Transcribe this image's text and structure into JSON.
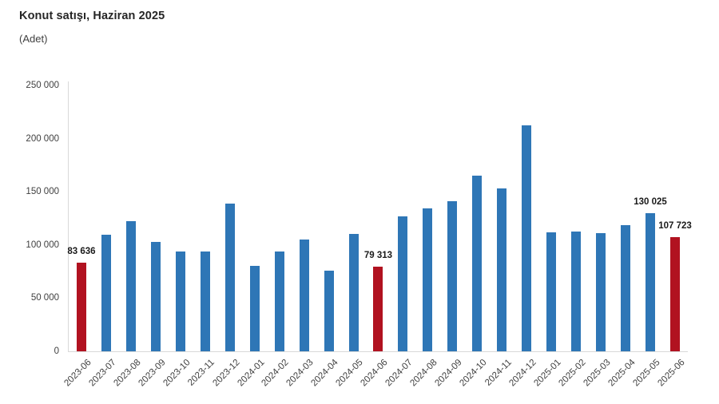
{
  "header": {
    "title": "Konut satışı, Haziran 2025",
    "subtitle": "(Adet)"
  },
  "chart_data": {
    "type": "bar",
    "title": "Konut satışı, Haziran 2025",
    "unit_label": "(Adet)",
    "categories": [
      "2023-06",
      "2023-07",
      "2023-08",
      "2023-09",
      "2023-10",
      "2023-11",
      "2023-12",
      "2024-01",
      "2024-02",
      "2024-03",
      "2024-04",
      "2024-05",
      "2024-06",
      "2024-07",
      "2024-08",
      "2024-09",
      "2024-10",
      "2024-11",
      "2024-12",
      "2025-01",
      "2025-02",
      "2025-03",
      "2025-04",
      "2025-05",
      "2025-06"
    ],
    "values": [
      83636,
      109548,
      122091,
      102656,
      93761,
      93514,
      138577,
      80308,
      93902,
      105394,
      75569,
      110588,
      79313,
      127088,
      134155,
      140919,
      165138,
      153014,
      212637,
      112173,
      112818,
      110795,
      118359,
      130025,
      107723
    ],
    "highlighted_categories": [
      "2023-06",
      "2024-06",
      "2025-06"
    ],
    "data_labels": [
      {
        "category": "2023-06",
        "text": "83 636"
      },
      {
        "category": "2024-06",
        "text": "79 313"
      },
      {
        "category": "2025-05",
        "text": "130 025"
      },
      {
        "category": "2025-06",
        "text": "107 723"
      }
    ],
    "ylim": [
      0,
      250000
    ],
    "yticks": [
      {
        "value": 0,
        "label": "0"
      },
      {
        "value": 50000,
        "label": "50 000"
      },
      {
        "value": 100000,
        "label": "100 000"
      },
      {
        "value": 150000,
        "label": "150 000"
      },
      {
        "value": 200000,
        "label": "200 000"
      },
      {
        "value": 250000,
        "label": "250 000"
      }
    ],
    "grid": false,
    "legend": "none",
    "colors": {
      "default_bar": "#2e76b6",
      "highlight_bar": "#b11220",
      "axis": "#d9d9d9",
      "title_text": "#262626",
      "tick_text": "#3f3f3f",
      "label_text": "#1a1a1a"
    }
  }
}
